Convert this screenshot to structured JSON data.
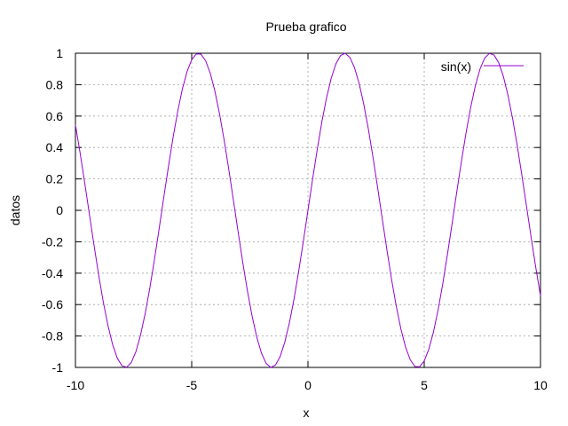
{
  "chart_data": {
    "type": "line",
    "title": "Prueba grafico",
    "xlabel": "x",
    "ylabel": "datos",
    "xlim": [
      -10,
      10
    ],
    "ylim": [
      -1,
      1
    ],
    "x_ticks": [
      -10,
      -5,
      0,
      5,
      10
    ],
    "x_tick_labels": [
      "-10",
      "-5",
      "0",
      "5",
      "10"
    ],
    "y_ticks": [
      -1,
      -0.8,
      -0.6,
      -0.4,
      -0.2,
      0,
      0.2,
      0.4,
      0.6,
      0.8,
      1
    ],
    "y_tick_labels": [
      "-1",
      "-0.8",
      "-0.6",
      "-0.4",
      "-0.2",
      "0",
      "0.2",
      "0.4",
      "0.6",
      "0.8",
      "1"
    ],
    "grid": true,
    "legend_position": "top-right",
    "series": [
      {
        "name": "sin(x)",
        "color": "#9400d3",
        "x": [
          -10,
          -9.8,
          -9.6,
          -9.4,
          -9.2,
          -9,
          -8.8,
          -8.6,
          -8.4,
          -8.2,
          -8,
          -7.8,
          -7.6,
          -7.4,
          -7.2,
          -7,
          -6.8,
          -6.6,
          -6.4,
          -6.2,
          -6,
          -5.8,
          -5.6,
          -5.4,
          -5.2,
          -5,
          -4.8,
          -4.6,
          -4.4,
          -4.2,
          -4,
          -3.8,
          -3.6,
          -3.4,
          -3.2,
          -3,
          -2.8,
          -2.6,
          -2.4,
          -2.2,
          -2,
          -1.8,
          -1.6,
          -1.4,
          -1.2,
          -1,
          -0.8,
          -0.6,
          -0.4,
          -0.2,
          0,
          0.2,
          0.4,
          0.6,
          0.8,
          1,
          1.2,
          1.4,
          1.6,
          1.8,
          2,
          2.2,
          2.4,
          2.6,
          2.8,
          3,
          3.2,
          3.4,
          3.6,
          3.8,
          4,
          4.2,
          4.4,
          4.6,
          4.8,
          5,
          5.2,
          5.4,
          5.6,
          5.8,
          6,
          6.2,
          6.4,
          6.6,
          6.8,
          7,
          7.2,
          7.4,
          7.6,
          7.8,
          8,
          8.2,
          8.4,
          8.6,
          8.8,
          9,
          9.2,
          9.4,
          9.6,
          9.8,
          10
        ],
        "y": [
          0.544,
          0.366,
          0.175,
          -0.025,
          -0.223,
          -0.412,
          -0.585,
          -0.734,
          -0.855,
          -0.941,
          -0.989,
          -0.999,
          -0.969,
          -0.9,
          -0.794,
          -0.657,
          -0.494,
          -0.312,
          -0.117,
          0.083,
          0.279,
          0.465,
          0.631,
          0.773,
          0.883,
          0.959,
          0.996,
          0.994,
          0.952,
          0.872,
          0.757,
          0.612,
          0.443,
          0.256,
          0.058,
          -0.141,
          -0.335,
          -0.516,
          -0.675,
          -0.808,
          -0.909,
          -0.974,
          -1.0,
          -0.985,
          -0.932,
          -0.841,
          -0.717,
          -0.565,
          -0.389,
          -0.199,
          0,
          0.199,
          0.389,
          0.565,
          0.717,
          0.841,
          0.932,
          0.985,
          1.0,
          0.974,
          0.909,
          0.808,
          0.675,
          0.516,
          0.335,
          0.141,
          -0.058,
          -0.256,
          -0.443,
          -0.612,
          -0.757,
          -0.872,
          -0.952,
          -0.994,
          -0.996,
          -0.959,
          -0.883,
          -0.773,
          -0.631,
          -0.465,
          -0.279,
          -0.083,
          0.117,
          0.312,
          0.494,
          0.657,
          0.794,
          0.9,
          0.969,
          0.999,
          0.989,
          0.941,
          0.855,
          0.734,
          0.585,
          0.412,
          0.223,
          0.025,
          -0.175,
          -0.366,
          -0.544
        ]
      }
    ]
  }
}
